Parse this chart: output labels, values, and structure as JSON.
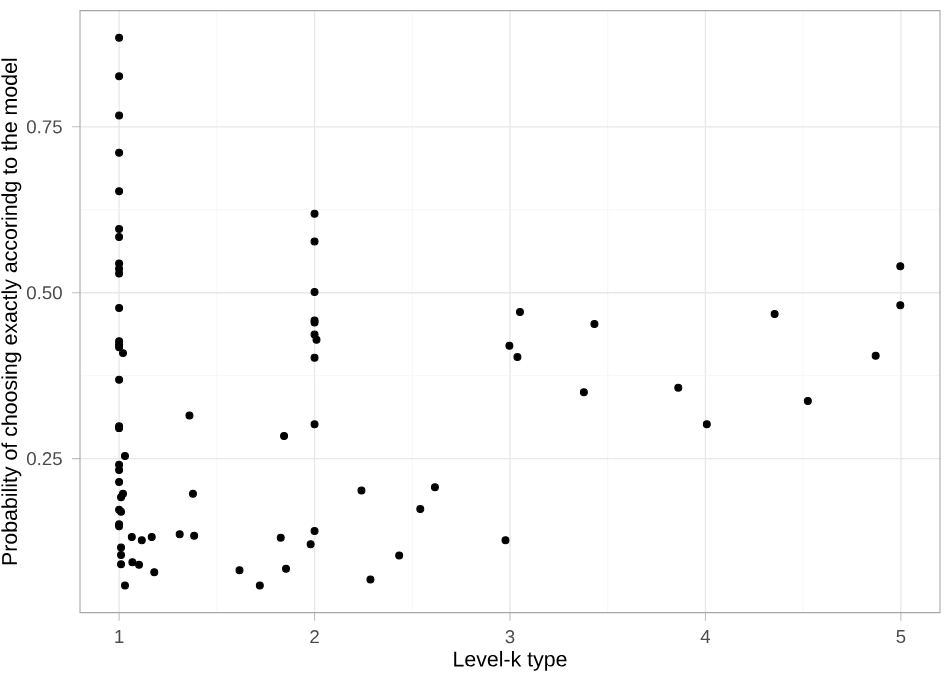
{
  "chart_data": {
    "type": "scatter",
    "xlabel": "Level-k type",
    "ylabel": "Probability of choosing exactly accorindg to the model",
    "xlim": [
      0.8,
      5.2
    ],
    "ylim": [
      0.018,
      0.925
    ],
    "xticks": [
      1,
      2,
      3,
      4,
      5
    ],
    "yticks": [
      {
        "value": 0.25,
        "label": "0.25"
      },
      {
        "value": 0.5,
        "label": "0.50"
      },
      {
        "value": 0.75,
        "label": "0.75"
      }
    ],
    "grid": true,
    "marker": "circle",
    "series": [
      {
        "color": "#000000",
        "x": [
          1,
          1,
          1,
          1,
          1,
          1,
          1,
          1,
          1,
          1,
          1,
          1,
          1,
          1,
          1.02,
          1,
          1,
          1,
          1.03,
          1,
          1,
          1,
          1.02,
          1.01,
          1,
          1.01,
          1,
          1,
          1.01,
          1.01,
          1.01,
          1.03,
          1.065,
          1.116,
          1.167,
          1.068,
          1.102,
          1.18,
          1.31,
          1.384,
          1.36,
          1.378,
          1.616,
          1.72,
          1.827,
          1.854,
          1.844,
          2,
          2,
          2,
          2,
          2,
          2,
          2.01,
          2,
          2,
          2,
          1.98,
          2.24,
          2.286,
          2.433,
          2.541,
          2.616,
          2.977,
          2.997,
          3.038,
          3.051,
          3.378,
          3.432,
          3.861,
          4.007,
          4.354,
          4.524,
          4.871,
          4.997,
          4.997
        ],
        "values": [
          0.884,
          0.826,
          0.767,
          0.711,
          0.653,
          0.596,
          0.584,
          0.544,
          0.536,
          0.529,
          0.477,
          0.427,
          0.422,
          0.418,
          0.409,
          0.369,
          0.299,
          0.296,
          0.254,
          0.241,
          0.233,
          0.215,
          0.197,
          0.192,
          0.173,
          0.17,
          0.151,
          0.148,
          0.116,
          0.105,
          0.091,
          0.059,
          0.132,
          0.127,
          0.132,
          0.094,
          0.09,
          0.079,
          0.136,
          0.134,
          0.315,
          0.197,
          0.082,
          0.059,
          0.131,
          0.084,
          0.284,
          0.619,
          0.577,
          0.501,
          0.458,
          0.455,
          0.437,
          0.429,
          0.402,
          0.302,
          0.141,
          0.121,
          0.202,
          0.068,
          0.104,
          0.174,
          0.207,
          0.127,
          0.42,
          0.403,
          0.471,
          0.35,
          0.453,
          0.357,
          0.302,
          0.468,
          0.337,
          0.405,
          0.481,
          0.54
        ]
      }
    ]
  }
}
